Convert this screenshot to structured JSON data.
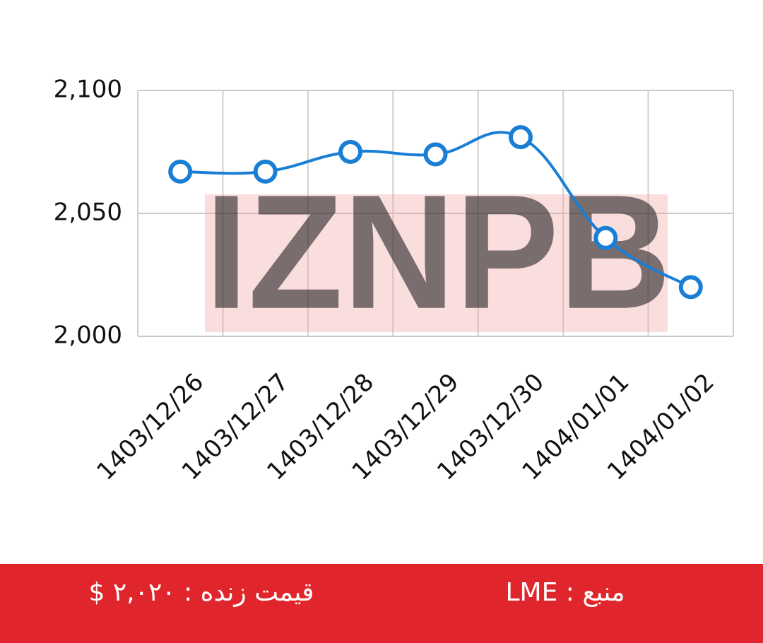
{
  "chart_data": {
    "type": "line",
    "watermark": "IZNPB",
    "categories": [
      "1403/12/26",
      "1403/12/27",
      "1403/12/28",
      "1403/12/29",
      "1403/12/30",
      "1404/01/01",
      "1404/01/02"
    ],
    "series": [
      {
        "name": "LME",
        "color": "#1a7fd4",
        "values": [
          2067,
          2067,
          2075,
          2074,
          2081,
          2040,
          2020
        ]
      }
    ],
    "ylim": [
      2000,
      2100
    ],
    "yticks": [
      {
        "value": 2000,
        "label": "2,000"
      },
      {
        "value": 2050,
        "label": "2,050"
      },
      {
        "value": 2100,
        "label": "2,100"
      }
    ],
    "grid": true
  },
  "footer": {
    "price": "قیمت زنده : ۲,۰۲۰ $",
    "source": "منبع : LME"
  }
}
